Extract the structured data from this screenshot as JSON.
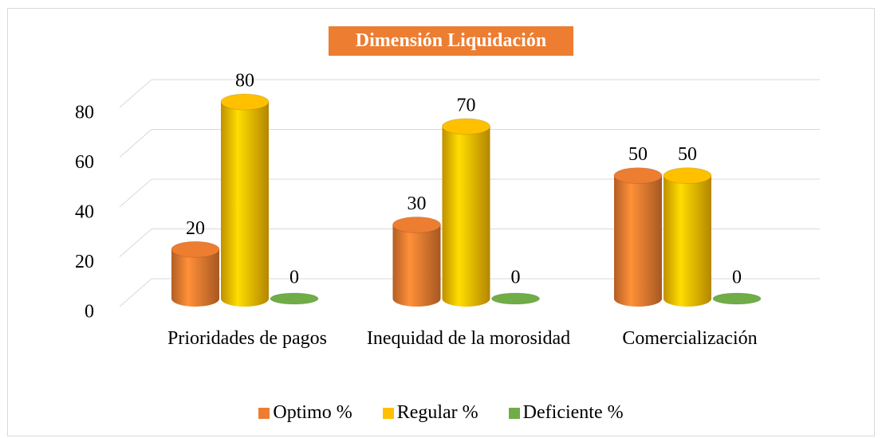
{
  "chart_data": {
    "type": "bar3d",
    "title": "Dimensión Liquidación",
    "categories": [
      "Prioridades de pagos",
      "Inequidad de la morosidad",
      "Comercialización"
    ],
    "series": [
      {
        "name": "Optimo %",
        "color": "#ed7d31",
        "values": [
          20,
          30,
          50
        ]
      },
      {
        "name": "Regular %",
        "color": "#ffc000",
        "values": [
          80,
          70,
          50
        ]
      },
      {
        "name": "Deficiente %",
        "color": "#70ad47",
        "values": [
          0,
          0,
          0
        ]
      }
    ],
    "ylim": [
      0,
      80
    ],
    "yticks": [
      0,
      20,
      40,
      60,
      80
    ],
    "grid": true,
    "legend": "bottom"
  }
}
